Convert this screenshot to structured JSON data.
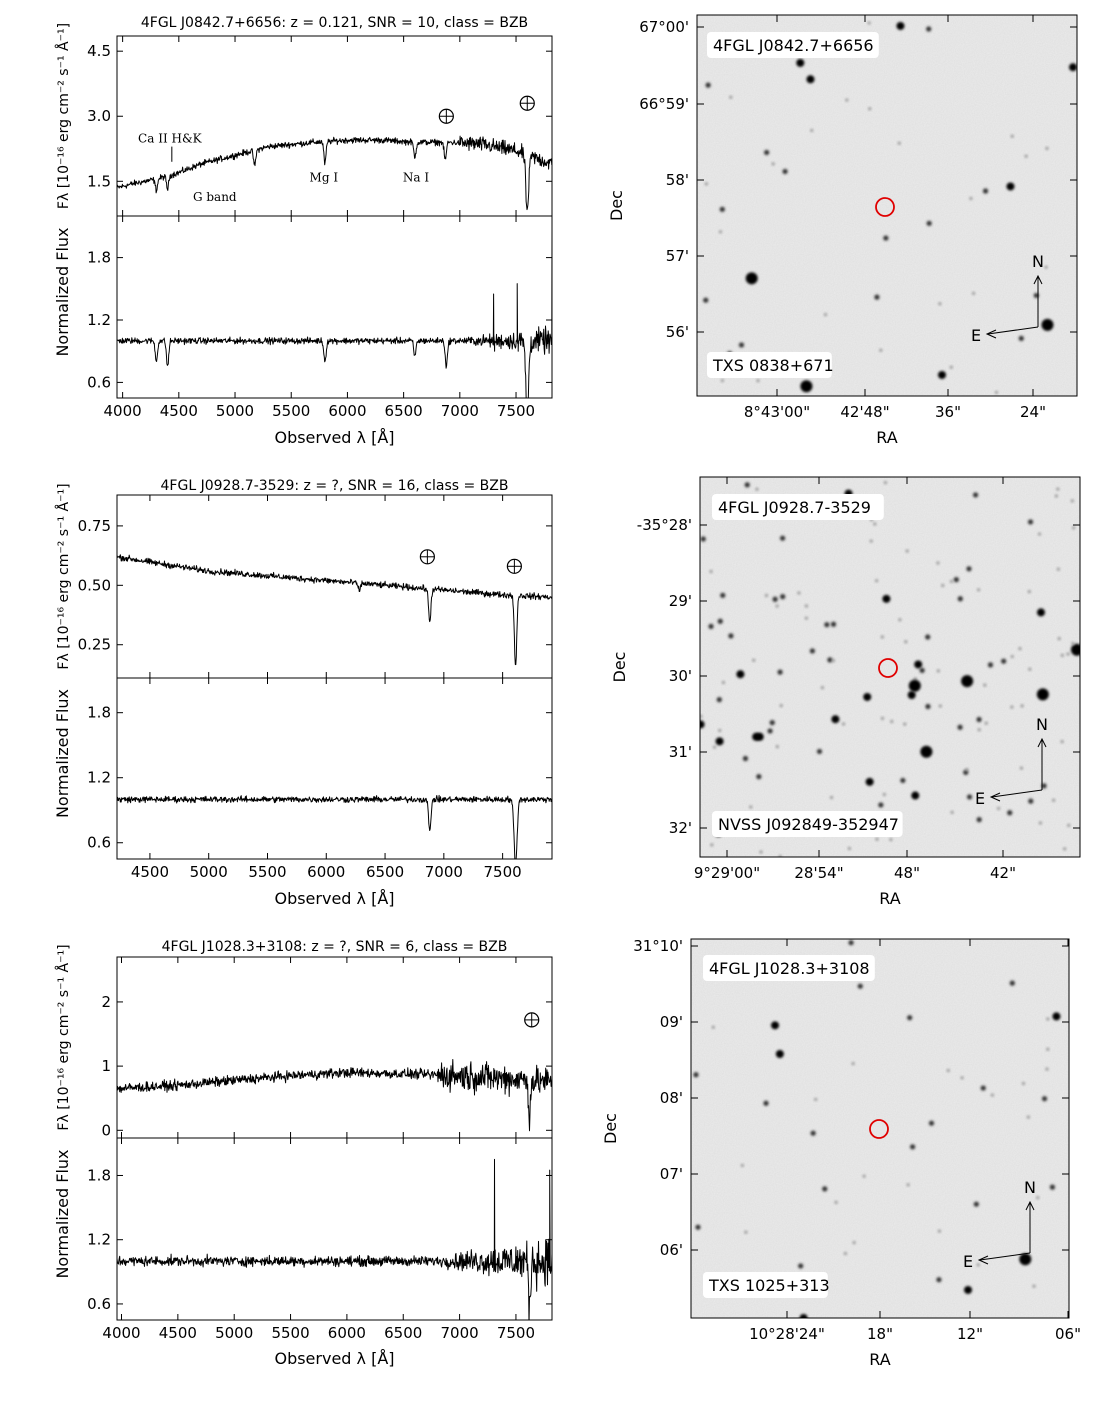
{
  "chart_data": [
    {
      "type": "line",
      "title": "4FGL J0842.7+6656: z = 0.121, SNR = 10, class = BZB",
      "xlabel": "Observed λ [Å]",
      "ylabel_top": "Fλ [10⁻¹⁶ erg cm⁻² s⁻¹ Å⁻¹]",
      "ylabel_bottom": "Normalized Flux",
      "xlim": [
        3950,
        7820
      ],
      "xticks": [
        4000,
        4500,
        5000,
        5500,
        6000,
        6500,
        7000,
        7500
      ],
      "top": {
        "ylim": [
          0.7,
          4.85
        ],
        "yticks": [
          1.5,
          3.0,
          4.5
        ],
        "ytick_labels": [
          "1.5",
          "3.0",
          "4.5"
        ],
        "series": [
          {
            "name": "flux",
            "x": [
              3950,
              4100,
              4300,
              4500,
              4700,
              5000,
              5300,
              5500,
              5700,
              6000,
              6300,
              6600,
              6900,
              7200,
              7500,
              7820
            ],
            "values": [
              1.35,
              1.45,
              1.55,
              1.7,
              1.9,
              2.1,
              2.3,
              2.35,
              2.4,
              2.45,
              2.45,
              2.4,
              2.4,
              2.35,
              2.2,
              1.9
            ]
          }
        ],
        "absorption": [
          {
            "x": 4300,
            "depth": 0.25
          },
          {
            "x": 4400,
            "depth": 0.3
          },
          {
            "x": 5175,
            "depth": 0.35
          },
          {
            "x": 5800,
            "depth": 0.5
          },
          {
            "x": 6600,
            "depth": 0.35
          },
          {
            "x": 6870,
            "depth": 0.4
          },
          {
            "x": 7600,
            "depth": 1.3
          }
        ],
        "annotations": [
          {
            "text": "Ca II H&K",
            "x": 4420,
            "y": 2.4
          },
          {
            "text": "G band",
            "x": 4820,
            "y": 1.05
          },
          {
            "text": "Mg I",
            "x": 5790,
            "y": 1.5
          },
          {
            "text": "Na I",
            "x": 6610,
            "y": 1.5
          }
        ],
        "telluric": [
          {
            "x": 6880,
            "y": 3.0
          },
          {
            "x": 7600,
            "y": 3.3
          }
        ]
      },
      "bottom": {
        "ylim": [
          0.45,
          2.2
        ],
        "yticks": [
          0.6,
          1.2,
          1.8
        ],
        "ytick_labels": [
          "0.6",
          "1.2",
          "1.8"
        ],
        "series": [
          {
            "name": "normalized",
            "x": [
              3950,
              5000,
              6000,
              7000,
              7500,
              7820
            ],
            "values": [
              1.0,
              1.0,
              1.0,
              1.0,
              1.0,
              1.0
            ]
          }
        ],
        "absorption": [
          {
            "x": 4300,
            "depth": 0.2
          },
          {
            "x": 4400,
            "depth": 0.25
          },
          {
            "x": 5800,
            "depth": 0.2
          },
          {
            "x": 6600,
            "depth": 0.15
          },
          {
            "x": 6880,
            "depth": 0.25
          },
          {
            "x": 7600,
            "depth": 0.7
          }
        ],
        "noise_ramp_from": 7000,
        "spikes": [
          {
            "x": 7820,
            "y": 2.05
          },
          {
            "x": 7510,
            "y": 1.55
          },
          {
            "x": 7300,
            "y": 1.45
          }
        ]
      },
      "image": {
        "label_top": "4FGL J0842.7+6656",
        "label_bottom": "TXS 0838+671",
        "xlabel": "RA",
        "ylabel": "Dec",
        "xtick_labels": [
          "8°43'00\"",
          "42'48\"",
          "36\"",
          "24\""
        ],
        "ytick_labels": [
          "67°00'",
          "66°59'",
          "58'",
          "57'",
          "56'"
        ],
        "compass": [
          "N",
          "E"
        ]
      }
    },
    {
      "type": "line",
      "title": "4FGL J0928.7-3529: z = ?, SNR = 16, class = BZB",
      "xlabel": "Observed λ [Å]",
      "ylabel_top": "Fλ [10⁻¹⁶ erg cm⁻² s⁻¹ Å⁻¹]",
      "ylabel_bottom": "Normalized Flux",
      "xlim": [
        4220,
        7920
      ],
      "xticks": [
        4500,
        5000,
        5500,
        6000,
        6500,
        7000,
        7500
      ],
      "top": {
        "ylim": [
          0.11,
          0.88
        ],
        "yticks": [
          0.25,
          0.5,
          0.75
        ],
        "ytick_labels": [
          "0.25",
          "0.50",
          "0.75"
        ],
        "series": [
          {
            "name": "flux",
            "x": [
              4220,
              4600,
              5000,
              5500,
              6000,
              6500,
              7000,
              7500,
              7920
            ],
            "values": [
              0.62,
              0.59,
              0.56,
              0.54,
              0.52,
              0.5,
              0.48,
              0.46,
              0.45
            ]
          }
        ],
        "absorption": [
          {
            "x": 6880,
            "depth": 0.14
          },
          {
            "x": 7610,
            "depth": 0.3
          },
          {
            "x": 6280,
            "depth": 0.03
          }
        ],
        "telluric": [
          {
            "x": 6860,
            "y": 0.62
          },
          {
            "x": 7600,
            "y": 0.58
          }
        ]
      },
      "bottom": {
        "ylim": [
          0.45,
          2.12
        ],
        "yticks": [
          0.6,
          1.2,
          1.8
        ],
        "ytick_labels": [
          "0.6",
          "1.2",
          "1.8"
        ],
        "series": [
          {
            "name": "normalized",
            "x": [
              4220,
              6000,
              7920
            ],
            "values": [
              1.0,
              1.0,
              1.0
            ]
          }
        ],
        "absorption": [
          {
            "x": 6880,
            "depth": 0.3
          },
          {
            "x": 7610,
            "depth": 0.6
          }
        ],
        "noise_ramp_from": 9000,
        "spikes": []
      },
      "image": {
        "label_top": "4FGL J0928.7-3529",
        "label_bottom": "NVSS J092849-352947",
        "xlabel": "RA",
        "ylabel": "Dec",
        "xtick_labels": [
          "9°29'00\"",
          "28'54\"",
          "48\"",
          "42\""
        ],
        "ytick_labels": [
          "-35°28'",
          "29'",
          "30'",
          "31'",
          "32'"
        ],
        "compass": [
          "N",
          "E"
        ]
      }
    },
    {
      "type": "line",
      "title": "4FGL J1028.3+3108: z = ?, SNR = 6, class = BZB",
      "xlabel": "Observed λ [Å]",
      "ylabel_top": "Fλ [10⁻¹⁶ erg cm⁻² s⁻¹ Å⁻¹]",
      "ylabel_bottom": "Normalized Flux",
      "xlim": [
        3960,
        7820
      ],
      "xticks": [
        4000,
        4500,
        5000,
        5500,
        6000,
        6500,
        7000,
        7500
      ],
      "top": {
        "ylim": [
          -0.12,
          2.7
        ],
        "yticks": [
          0,
          1,
          2
        ],
        "ytick_labels": [
          "0",
          "1",
          "2"
        ],
        "series": [
          {
            "name": "flux",
            "x": [
              3960,
              4500,
              5000,
              5500,
              6000,
              6500,
              7000,
              7500,
              7820
            ],
            "values": [
              0.65,
              0.7,
              0.78,
              0.85,
              0.9,
              0.88,
              0.85,
              0.8,
              0.75
            ]
          }
        ],
        "absorption": [
          {
            "x": 7620,
            "depth": 0.5
          }
        ],
        "telluric": [
          {
            "x": 7640,
            "y": 1.72
          }
        ]
      },
      "bottom": {
        "ylim": [
          0.45,
          2.15
        ],
        "yticks": [
          0.6,
          1.2,
          1.8
        ],
        "ytick_labels": [
          "0.6",
          "1.2",
          "1.8"
        ],
        "series": [
          {
            "name": "normalized",
            "x": [
              3960,
              6000,
              7820
            ],
            "values": [
              1.0,
              1.0,
              1.0
            ]
          }
        ],
        "absorption": [
          {
            "x": 7620,
            "depth": 0.4
          }
        ],
        "noise_ramp_from": 6800,
        "spikes": [
          {
            "x": 7310,
            "y": 1.95
          },
          {
            "x": 7800,
            "y": 1.85
          }
        ]
      },
      "image": {
        "label_top": "4FGL J1028.3+3108",
        "label_bottom": "TXS 1025+313",
        "xlabel": "RA",
        "ylabel": "Dec",
        "xtick_labels": [
          "10°28'24\"",
          "18\"",
          "12\"",
          "06\""
        ],
        "ytick_labels": [
          "31°10'",
          "09'",
          "08'",
          "07'",
          "06'"
        ],
        "compass": [
          "N",
          "E"
        ]
      }
    }
  ]
}
